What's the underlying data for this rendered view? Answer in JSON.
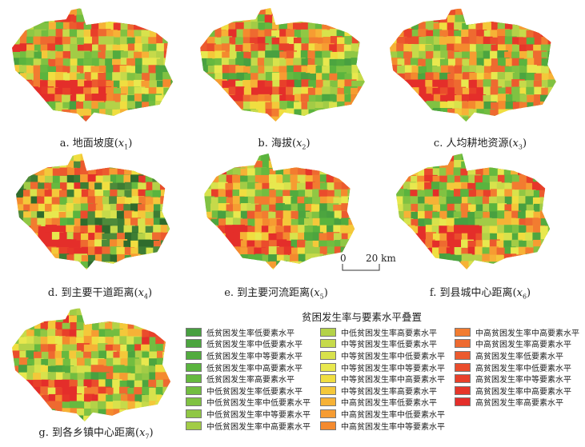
{
  "maps": [
    {
      "id": "a",
      "label": "a. 地面坡度",
      "var": "x",
      "sub": "1",
      "seed": 11,
      "dark": false
    },
    {
      "id": "b",
      "label": "b. 海拔",
      "var": "x",
      "sub": "2",
      "seed": 23,
      "dark": false
    },
    {
      "id": "c",
      "label": "c. 人均耕地资源",
      "var": "x",
      "sub": "3",
      "seed": 37,
      "dark": false
    },
    {
      "id": "d",
      "label": "d. 到主要干道距离",
      "var": "x",
      "sub": "4",
      "seed": 41,
      "dark": true
    },
    {
      "id": "e",
      "label": "e. 到主要河流距离",
      "var": "x",
      "sub": "5",
      "seed": 53,
      "dark": false
    },
    {
      "id": "f",
      "label": "f. 到县城中心距离",
      "var": "x",
      "sub": "6",
      "seed": 67,
      "dark": false
    },
    {
      "id": "g",
      "label": "g. 到各乡镇中心距离",
      "var": "x",
      "sub": "7",
      "seed": 79,
      "dark": false
    }
  ],
  "scale_bar": {
    "start": "0",
    "end": "20 km"
  },
  "legend": {
    "title": "贫困发生率与要素水平叠置",
    "items": [
      {
        "label": "低贫困发生率低要素水平",
        "color": "#48a040"
      },
      {
        "label": "低贫困发生率中低要素水平",
        "color": "#4ca53f"
      },
      {
        "label": "低贫困发生率中等要素水平",
        "color": "#52ab3e"
      },
      {
        "label": "低贫困发生率中高要素水平",
        "color": "#5ab43e"
      },
      {
        "label": "低贫困发生率高要素水平",
        "color": "#66b93f"
      },
      {
        "label": "中低贫困发生率低要素水平",
        "color": "#72bd40"
      },
      {
        "label": "中低贫困发生率中低要素水平",
        "color": "#80c242"
      },
      {
        "label": "中低贫困发生率中等要素水平",
        "color": "#90c744"
      },
      {
        "label": "中低贫困发生率中高要素水平",
        "color": "#a2cc46"
      },
      {
        "label": "中低贫困发生率高要素水平",
        "color": "#b4d248"
      },
      {
        "label": "中等贫困发生率低要素水平",
        "color": "#c6da4a"
      },
      {
        "label": "中等贫困发生率中低要素水平",
        "color": "#d8e24c"
      },
      {
        "label": "中等贫困发生率中等要素水平",
        "color": "#e8e84e"
      },
      {
        "label": "中等贫困发生率中高要素水平",
        "color": "#f0de40"
      },
      {
        "label": "中等贫困发生率高要素水平",
        "color": "#f4c83a"
      },
      {
        "label": "中高贫困发生率低要素水平",
        "color": "#f6b236"
      },
      {
        "label": "中高贫困发生率中低要素水平",
        "color": "#f69c32"
      },
      {
        "label": "中高贫困发生率中等要素水平",
        "color": "#f48a2e"
      },
      {
        "label": "中高贫困发生率中高要素水平",
        "color": "#f27c30"
      },
      {
        "label": "中高贫困发生率高要素水平",
        "color": "#ee6a30"
      },
      {
        "label": "高贫困发生率低要素水平",
        "color": "#ec5a2e"
      },
      {
        "label": "高贫困发生率中低要素水平",
        "color": "#ea4c2c"
      },
      {
        "label": "高贫困发生率中等要素水平",
        "color": "#e8402a"
      },
      {
        "label": "高贫困发生率中高要素水平",
        "color": "#e6362a"
      },
      {
        "label": "高贫困发生率高要素水平",
        "color": "#e42e2a"
      }
    ],
    "dark_greens": [
      "#2f6b2c",
      "#3d7d34",
      "#4d8a3a"
    ]
  }
}
